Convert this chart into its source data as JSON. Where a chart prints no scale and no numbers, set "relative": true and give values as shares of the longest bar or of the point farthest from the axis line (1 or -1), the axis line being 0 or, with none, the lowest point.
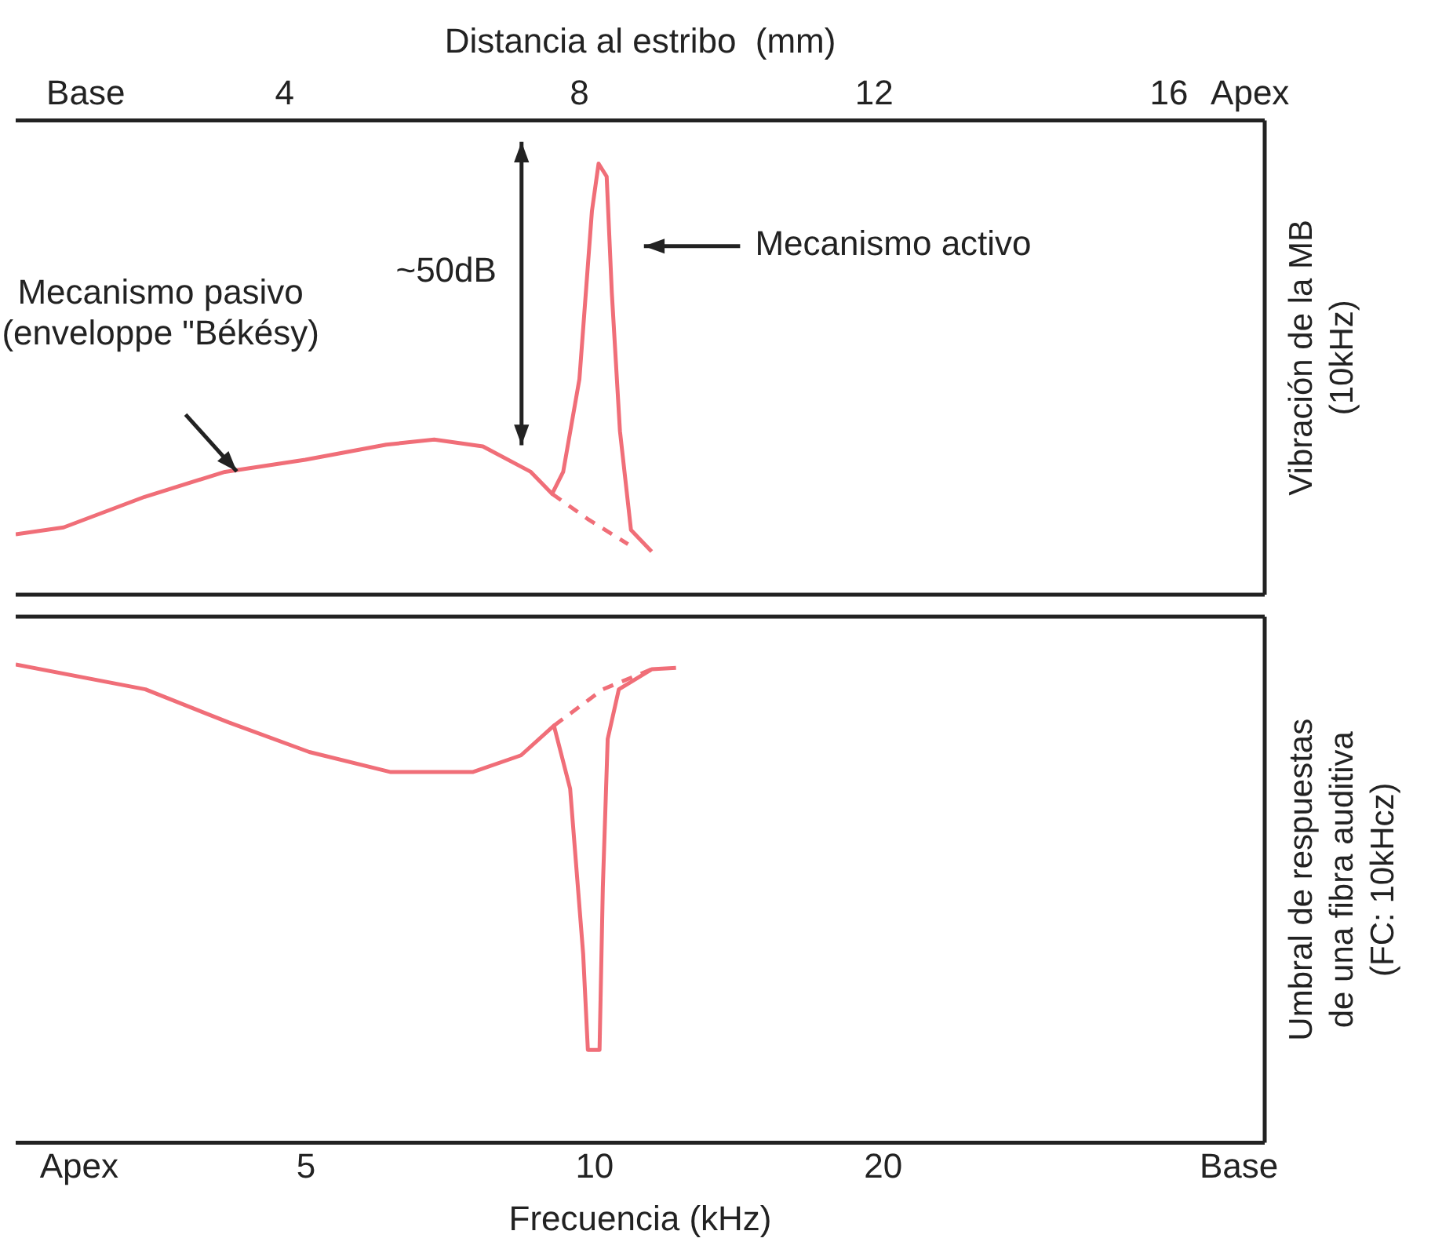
{
  "chart_data": [
    {
      "type": "line",
      "relative": true,
      "xlabel": "Distancia al estribo  (mm)",
      "ylabel": "Vibración de la MB\n(10kHz)",
      "xlim": [
        0.35,
        17.3
      ],
      "xticks": [
        {
          "value": 1.3,
          "label": "Base"
        },
        4,
        8,
        12,
        16,
        {
          "value": 17.1,
          "label": "Apex"
        }
      ],
      "legend": false,
      "grid": false,
      "marker": "none",
      "series": [
        {
          "color": "#f06e78",
          "line_style": "solid",
          "x": [
            0.35,
            1.0,
            2.1,
            3.19,
            4.28,
            5.38,
            6.03,
            6.69,
            7.34,
            7.63,
            7.78,
            8.0,
            8.17,
            8.26,
            8.37,
            8.44,
            8.55,
            8.7,
            8.98
          ],
          "values": [
            0.14,
            0.156,
            0.227,
            0.285,
            0.313,
            0.348,
            0.36,
            0.344,
            0.285,
            0.234,
            0.285,
            0.5,
            0.89,
            1.0,
            0.97,
            0.7,
            0.38,
            0.15,
            0.1
          ]
        },
        {
          "color": "#f06e78",
          "line_style": "dashed",
          "x": [
            7.63,
            8.11,
            8.66
          ],
          "values": [
            0.234,
            0.176,
            0.117
          ]
        }
      ],
      "annotations": [
        "Mecanismo pasivo\n(enveloppe \"Békésy)",
        "~50dB",
        "Mecanismo activo"
      ]
    },
    {
      "type": "line",
      "relative": true,
      "log": "x",
      "xlabel": "Frecuencia (kHz)",
      "ylabel": "Umbral de respuestas\nde una fibra auditiva\n(FC: 10kHcz)",
      "xlim": [
        2.49,
        50
      ],
      "xticks": [
        {
          "value": 2.9,
          "label": "Apex"
        },
        5,
        10,
        20,
        {
          "value": 47,
          "label": "Base"
        }
      ],
      "legend": false,
      "grid": false,
      "marker": "none",
      "series": [
        {
          "color": "#f06e78",
          "line_style": "solid",
          "x": [
            2.49,
            3.4,
            4.15,
            5.04,
            6.13,
            7.46,
            8.38,
            9.07,
            9.43,
            9.73,
            9.84,
            10.12,
            10.2,
            10.32,
            10.6,
            11.47,
            12.16
          ],
          "values": [
            1.0,
            0.948,
            0.879,
            0.817,
            0.775,
            0.775,
            0.81,
            0.872,
            0.74,
            0.394,
            0.194,
            0.194,
            0.533,
            0.844,
            0.948,
            0.99,
            0.993
          ]
        },
        {
          "color": "#f06e78",
          "line_style": "dashed",
          "x": [
            9.07,
            10.2,
            11.47
          ],
          "values": [
            0.872,
            0.948,
            0.99
          ]
        }
      ]
    }
  ]
}
